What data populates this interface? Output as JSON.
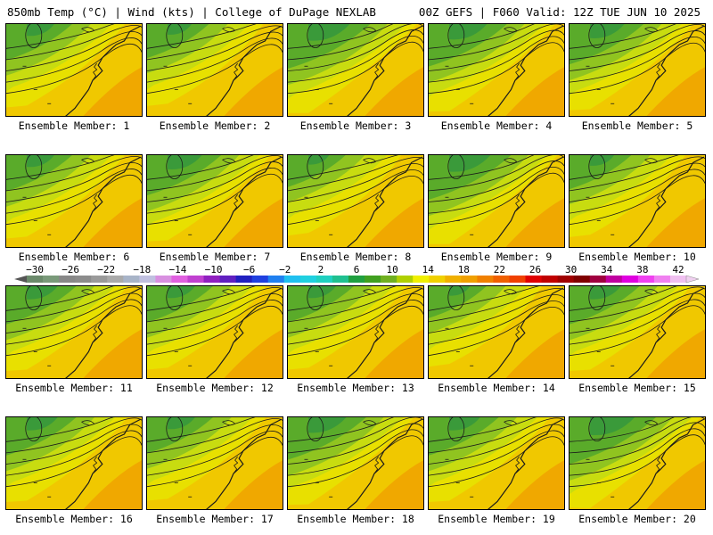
{
  "header": {
    "left": "850mb Temp (°C) | Wind (kts) | College of DuPage NEXLAB",
    "right": "00Z GEFS | F060 Valid: 12Z TUE JUN 10 2025"
  },
  "members": [
    {
      "label": "Ensemble Member: 1",
      "green": 0.3
    },
    {
      "label": "Ensemble Member: 2",
      "green": 0.25
    },
    {
      "label": "Ensemble Member: 3",
      "green": 0.5
    },
    {
      "label": "Ensemble Member: 4",
      "green": 0.45
    },
    {
      "label": "Ensemble Member: 5",
      "green": 0.4
    },
    {
      "label": "Ensemble Member: 6",
      "green": 0.3
    },
    {
      "label": "Ensemble Member: 7",
      "green": 0.4
    },
    {
      "label": "Ensemble Member: 8",
      "green": 0.2
    },
    {
      "label": "Ensemble Member: 9",
      "green": 0.5
    },
    {
      "label": "Ensemble Member: 10",
      "green": 0.25
    },
    {
      "label": "Ensemble Member: 11",
      "green": 0.35
    },
    {
      "label": "Ensemble Member: 12",
      "green": 0.3
    },
    {
      "label": "Ensemble Member: 13",
      "green": 0.3
    },
    {
      "label": "Ensemble Member: 14",
      "green": 0.2
    },
    {
      "label": "Ensemble Member: 15",
      "green": 0.35
    },
    {
      "label": "Ensemble Member: 16",
      "green": 0.35
    },
    {
      "label": "Ensemble Member: 17",
      "green": 0.3
    },
    {
      "label": "Ensemble Member: 18",
      "green": 0.45
    },
    {
      "label": "Ensemble Member: 19",
      "green": 0.35
    },
    {
      "label": "Ensemble Member: 20",
      "green": 0.55
    }
  ],
  "colorbar": {
    "ticks": [
      "-30",
      "-26",
      "-22",
      "-18",
      "-14",
      "-10",
      "-6",
      "-2",
      "2",
      "6",
      "10",
      "14",
      "18",
      "22",
      "26",
      "30",
      "34",
      "38",
      "42"
    ],
    "colors": [
      "#6b8a6b",
      "#7a9a7a",
      "#888888",
      "#8c8c8c",
      "#9a9a9a",
      "#aaaaaa",
      "#a8b4c8",
      "#c0c0e0",
      "#d890e0",
      "#e060e0",
      "#c040d0",
      "#9020c0",
      "#6020c0",
      "#2020c0",
      "#2040e0",
      "#2080f0",
      "#20c0f0",
      "#20d0e0",
      "#20d0c0",
      "#20c090",
      "#20a040",
      "#40a020",
      "#70b020",
      "#b0d000",
      "#f0f000",
      "#f0d000",
      "#f0b000",
      "#f0a000",
      "#f08000",
      "#f06000",
      "#f04000",
      "#e00000",
      "#c00000",
      "#a00000",
      "#800000",
      "#a00040",
      "#c000a0",
      "#e000e0",
      "#f040f0",
      "#f080f0",
      "#f0c0f0"
    ],
    "arrow_color": "#555555"
  },
  "map_colors": {
    "green_dark": "#3a9a3a",
    "green": "#5aab2a",
    "green_light": "#90c420",
    "yellow_green": "#c8dc10",
    "yellow": "#e8e000",
    "gold": "#f0c800",
    "orange": "#f0a800",
    "contour": "#1a1a1a"
  }
}
